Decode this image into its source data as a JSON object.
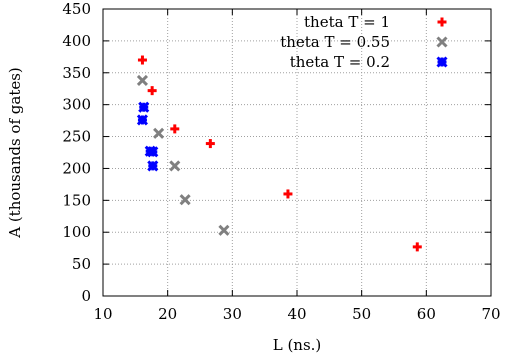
{
  "chart_data": {
    "type": "scatter",
    "title": "",
    "xlabel": "L (ns.)",
    "ylabel": "A (thousands of gates)",
    "xlim": [
      10,
      70
    ],
    "ylim": [
      0,
      450
    ],
    "xticks": [
      10,
      20,
      30,
      40,
      50,
      60,
      70
    ],
    "yticks": [
      0,
      50,
      100,
      150,
      200,
      250,
      300,
      350,
      400,
      450
    ],
    "grid": true,
    "legend_position": "top-right",
    "series": [
      {
        "name": "theta T = 1",
        "color": "#ff0000",
        "marker": "plus",
        "points": [
          [
            16.1,
            370
          ],
          [
            17.6,
            322
          ],
          [
            21.1,
            262
          ],
          [
            26.6,
            239
          ],
          [
            38.6,
            160
          ],
          [
            58.6,
            77
          ]
        ]
      },
      {
        "name": "theta T = 0.55",
        "color": "#808080",
        "marker": "cross",
        "points": [
          [
            16.1,
            338
          ],
          [
            18.6,
            255
          ],
          [
            21.1,
            204
          ],
          [
            22.7,
            151
          ],
          [
            28.7,
            103
          ]
        ]
      },
      {
        "name": "theta T = 0.2",
        "color": "#0000ff",
        "marker": "star",
        "points": [
          [
            16.3,
            296
          ],
          [
            16.1,
            276
          ],
          [
            17.3,
            227
          ],
          [
            17.7,
            226
          ],
          [
            17.7,
            204
          ]
        ]
      }
    ]
  }
}
